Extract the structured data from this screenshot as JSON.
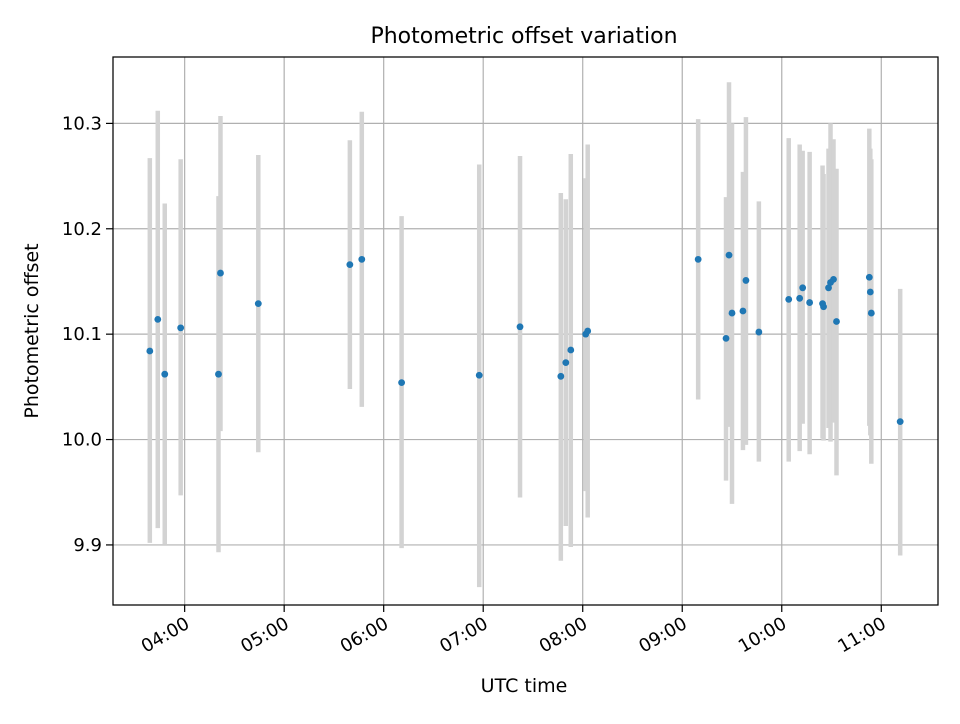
{
  "chart_data": {
    "type": "scatter",
    "title": "Photometric offset variation",
    "xlabel": "UTC time",
    "ylabel": "Photometric offset",
    "grid": true,
    "x_unit": "hours UTC",
    "xlim": [
      3.28,
      11.57
    ],
    "ylim": [
      9.843,
      10.363
    ],
    "x_ticks": [
      {
        "value": 4,
        "label": "04:00"
      },
      {
        "value": 5,
        "label": "05:00"
      },
      {
        "value": 6,
        "label": "06:00"
      },
      {
        "value": 7,
        "label": "07:00"
      },
      {
        "value": 8,
        "label": "08:00"
      },
      {
        "value": 9,
        "label": "09:00"
      },
      {
        "value": 10,
        "label": "10:00"
      },
      {
        "value": 11,
        "label": "11:00"
      }
    ],
    "y_ticks": [
      {
        "value": 9.9,
        "label": "9.9"
      },
      {
        "value": 10.0,
        "label": "10.0"
      },
      {
        "value": 10.1,
        "label": "10.1"
      },
      {
        "value": 10.2,
        "label": "10.2"
      },
      {
        "value": 10.3,
        "label": "10.3"
      }
    ],
    "colors": {
      "point": "#1f77b4",
      "errorbar": "#d3d3d3",
      "grid": "#b0b0b0",
      "axes": "#000000"
    },
    "points": [
      {
        "x": 3.65,
        "y": 10.084,
        "ylow": 9.902,
        "yhigh": 10.267
      },
      {
        "x": 3.73,
        "y": 10.114,
        "ylow": 9.916,
        "yhigh": 10.312
      },
      {
        "x": 3.8,
        "y": 10.062,
        "ylow": 9.9,
        "yhigh": 10.224
      },
      {
        "x": 3.96,
        "y": 10.106,
        "ylow": 9.947,
        "yhigh": 10.266
      },
      {
        "x": 4.34,
        "y": 10.062,
        "ylow": 9.893,
        "yhigh": 10.231
      },
      {
        "x": 4.36,
        "y": 10.158,
        "ylow": 10.008,
        "yhigh": 10.307
      },
      {
        "x": 4.74,
        "y": 10.129,
        "ylow": 9.988,
        "yhigh": 10.27
      },
      {
        "x": 5.66,
        "y": 10.166,
        "ylow": 10.048,
        "yhigh": 10.284
      },
      {
        "x": 5.78,
        "y": 10.171,
        "ylow": 10.031,
        "yhigh": 10.311
      },
      {
        "x": 6.18,
        "y": 10.054,
        "ylow": 9.897,
        "yhigh": 10.212
      },
      {
        "x": 6.96,
        "y": 10.061,
        "ylow": 9.86,
        "yhigh": 10.261
      },
      {
        "x": 7.37,
        "y": 10.107,
        "ylow": 9.945,
        "yhigh": 10.269
      },
      {
        "x": 7.78,
        "y": 10.06,
        "ylow": 9.885,
        "yhigh": 10.234
      },
      {
        "x": 7.83,
        "y": 10.073,
        "ylow": 9.918,
        "yhigh": 10.228
      },
      {
        "x": 7.88,
        "y": 10.085,
        "ylow": 9.898,
        "yhigh": 10.271
      },
      {
        "x": 8.03,
        "y": 10.1,
        "ylow": 9.951,
        "yhigh": 10.248
      },
      {
        "x": 8.05,
        "y": 10.103,
        "ylow": 9.926,
        "yhigh": 10.28
      },
      {
        "x": 9.16,
        "y": 10.171,
        "ylow": 10.038,
        "yhigh": 10.304
      },
      {
        "x": 9.44,
        "y": 10.096,
        "ylow": 9.961,
        "yhigh": 10.23
      },
      {
        "x": 9.47,
        "y": 10.175,
        "ylow": 10.012,
        "yhigh": 10.339
      },
      {
        "x": 9.5,
        "y": 10.12,
        "ylow": 9.939,
        "yhigh": 10.3
      },
      {
        "x": 9.61,
        "y": 10.122,
        "ylow": 9.99,
        "yhigh": 10.254
      },
      {
        "x": 9.64,
        "y": 10.151,
        "ylow": 9.995,
        "yhigh": 10.306
      },
      {
        "x": 9.77,
        "y": 10.102,
        "ylow": 9.979,
        "yhigh": 10.226
      },
      {
        "x": 10.07,
        "y": 10.133,
        "ylow": 9.979,
        "yhigh": 10.286
      },
      {
        "x": 10.18,
        "y": 10.134,
        "ylow": 9.989,
        "yhigh": 10.28
      },
      {
        "x": 10.21,
        "y": 10.144,
        "ylow": 10.015,
        "yhigh": 10.274
      },
      {
        "x": 10.28,
        "y": 10.13,
        "ylow": 9.986,
        "yhigh": 10.273
      },
      {
        "x": 10.41,
        "y": 10.129,
        "ylow": 10.001,
        "yhigh": 10.26
      },
      {
        "x": 10.42,
        "y": 10.126,
        "ylow": 9.999,
        "yhigh": 10.252
      },
      {
        "x": 10.47,
        "y": 10.144,
        "ylow": 10.011,
        "yhigh": 10.276
      },
      {
        "x": 10.49,
        "y": 10.149,
        "ylow": 9.998,
        "yhigh": 10.3
      },
      {
        "x": 10.52,
        "y": 10.152,
        "ylow": 10.016,
        "yhigh": 10.285
      },
      {
        "x": 10.55,
        "y": 10.112,
        "ylow": 9.966,
        "yhigh": 10.257
      },
      {
        "x": 10.88,
        "y": 10.154,
        "ylow": 10.013,
        "yhigh": 10.295
      },
      {
        "x": 10.89,
        "y": 10.14,
        "ylow": 10.004,
        "yhigh": 10.276
      },
      {
        "x": 10.9,
        "y": 10.12,
        "ylow": 9.977,
        "yhigh": 10.266
      },
      {
        "x": 11.19,
        "y": 10.017,
        "ylow": 9.89,
        "yhigh": 10.143
      }
    ]
  }
}
